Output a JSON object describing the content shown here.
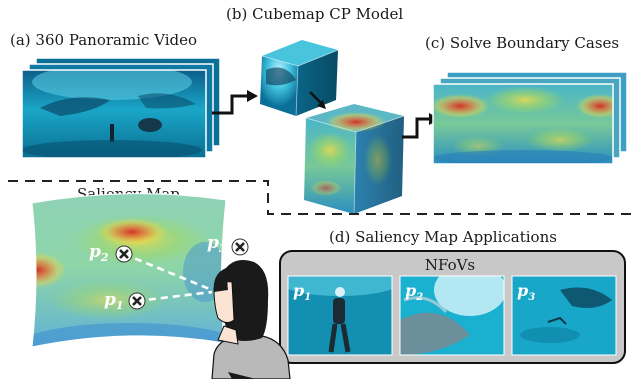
{
  "captions": {
    "cubemap_model": "(b) Cubemap CP Model",
    "panoramic_video": "(a) 360 Panoramic Video",
    "solve_boundary": "(c) Solve Boundary Cases",
    "saliency_map": "Saliency Map",
    "applications": "(d) Saliency Map Applications",
    "nfovs": "NFoVs"
  },
  "points": [
    {
      "id": "p1",
      "base": "p",
      "sub": "1"
    },
    {
      "id": "p2",
      "base": "p",
      "sub": "2"
    },
    {
      "id": "p3",
      "base": "p",
      "sub": "3"
    }
  ],
  "colors": {
    "water": "#1aa6c7",
    "deep_water": "#0b6f98",
    "heat_red": "#d8342a",
    "heat_yellow": "#e9d34a",
    "heat_green": "#7ecf6a",
    "panel_bg": "#c9c9c9",
    "arrow": "#111111"
  },
  "icons": [
    "cross-marker-icon",
    "viewer-silhouette-icon",
    "arrow-icon"
  ]
}
